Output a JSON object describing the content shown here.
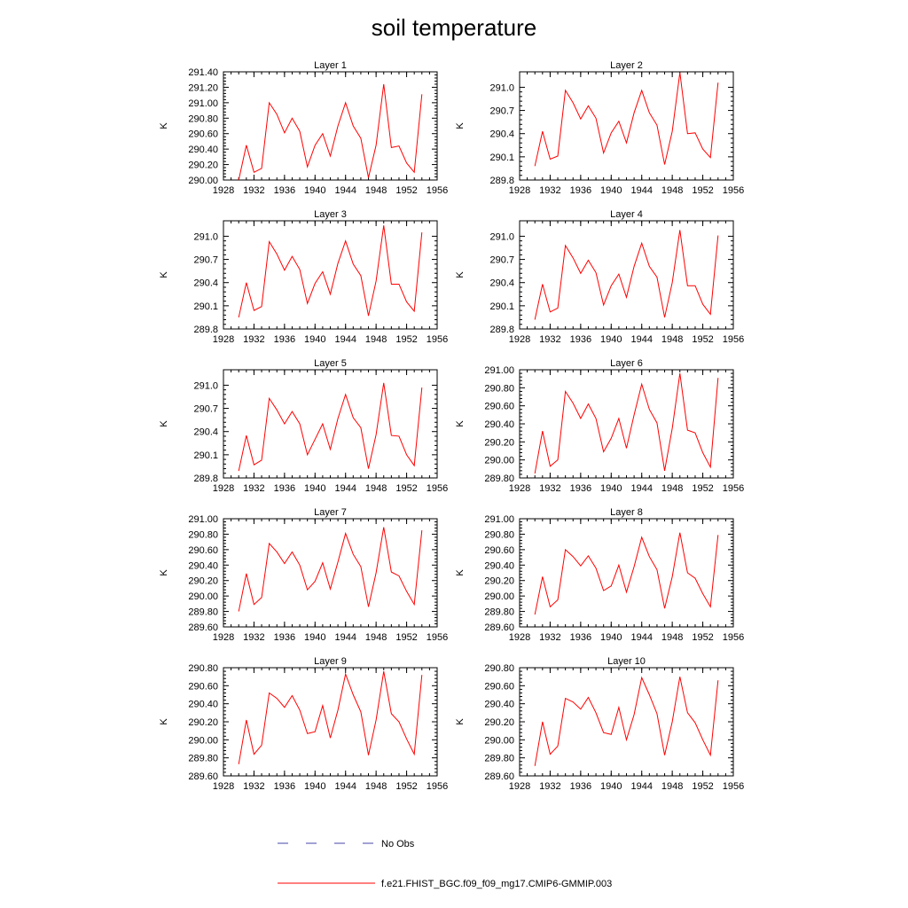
{
  "figure": {
    "title": "soil temperature"
  },
  "legend": {
    "entries": [
      {
        "label": "No Obs",
        "color": "#4444aa",
        "style": "dashed"
      },
      {
        "label": "f.e21.FHIST_BGC.f09_f09_mg17.CMIP6-GMMIP.003",
        "color": "#ff0000",
        "style": "solid"
      }
    ]
  },
  "chart_data": [
    {
      "type": "line",
      "title": "Layer 1",
      "ylabel": "K",
      "xlim": [
        1928,
        1956
      ],
      "ylim": [
        290.0,
        291.4
      ],
      "xticks": [
        1928,
        1932,
        1936,
        1940,
        1944,
        1948,
        1952,
        1956
      ],
      "yticks": [
        "290.00",
        "290.20",
        "290.40",
        "290.60",
        "290.80",
        "291.00",
        "291.20",
        "291.40"
      ],
      "series": [
        {
          "color": "#ff0000",
          "x": [
            1930,
            1931,
            1932,
            1933,
            1934,
            1935,
            1936,
            1937,
            1938,
            1939,
            1940,
            1941,
            1942,
            1943,
            1944,
            1945,
            1946,
            1947,
            1948,
            1949,
            1950,
            1951,
            1952,
            1953,
            1954
          ],
          "values": [
            290.0,
            290.45,
            290.1,
            290.15,
            291.0,
            290.85,
            290.61,
            290.8,
            290.63,
            290.17,
            290.45,
            290.6,
            290.31,
            290.7,
            291.0,
            290.7,
            290.54,
            290.03,
            290.45,
            291.24,
            290.42,
            290.44,
            290.22,
            290.1,
            291.11
          ]
        }
      ]
    },
    {
      "type": "line",
      "title": "Layer 2",
      "ylabel": "K",
      "xlim": [
        1928,
        1956
      ],
      "ylim": [
        289.8,
        291.2
      ],
      "xticks": [
        1928,
        1932,
        1936,
        1940,
        1944,
        1948,
        1952,
        1956
      ],
      "yticks": [
        "289.8",
        "290.1",
        "290.4",
        "290.7",
        "291.0"
      ],
      "series": [
        {
          "color": "#ff0000",
          "x": [
            1930,
            1931,
            1932,
            1933,
            1934,
            1935,
            1936,
            1937,
            1938,
            1939,
            1940,
            1941,
            1942,
            1943,
            1944,
            1945,
            1946,
            1947,
            1948,
            1949,
            1950,
            1951,
            1952,
            1953,
            1954
          ],
          "values": [
            289.98,
            290.43,
            290.07,
            290.11,
            290.96,
            290.8,
            290.59,
            290.76,
            290.6,
            290.15,
            290.41,
            290.56,
            290.28,
            290.67,
            290.96,
            290.67,
            290.51,
            290.0,
            290.43,
            291.19,
            290.4,
            290.41,
            290.2,
            290.09,
            291.06
          ]
        }
      ]
    },
    {
      "type": "line",
      "title": "Layer 3",
      "ylabel": "K",
      "xlim": [
        1928,
        1956
      ],
      "ylim": [
        289.8,
        291.2
      ],
      "xticks": [
        1928,
        1932,
        1936,
        1940,
        1944,
        1948,
        1952,
        1956
      ],
      "yticks": [
        "289.8",
        "290.1",
        "290.4",
        "290.7",
        "291.0"
      ],
      "series": [
        {
          "color": "#ff0000",
          "x": [
            1930,
            1931,
            1932,
            1933,
            1934,
            1935,
            1936,
            1937,
            1938,
            1939,
            1940,
            1941,
            1942,
            1943,
            1944,
            1945,
            1946,
            1947,
            1948,
            1949,
            1950,
            1951,
            1952,
            1953,
            1954
          ],
          "values": [
            289.95,
            290.4,
            290.04,
            290.09,
            290.93,
            290.77,
            290.56,
            290.74,
            290.57,
            290.13,
            290.39,
            290.54,
            290.25,
            290.65,
            290.94,
            290.64,
            290.49,
            289.97,
            290.42,
            291.14,
            290.38,
            290.38,
            290.15,
            290.03,
            291.05
          ]
        }
      ]
    },
    {
      "type": "line",
      "title": "Layer 4",
      "ylabel": "K",
      "xlim": [
        1928,
        1956
      ],
      "ylim": [
        289.8,
        291.2
      ],
      "xticks": [
        1928,
        1932,
        1936,
        1940,
        1944,
        1948,
        1952,
        1956
      ],
      "yticks": [
        "289.8",
        "290.1",
        "290.4",
        "290.7",
        "291.0"
      ],
      "series": [
        {
          "color": "#ff0000",
          "x": [
            1930,
            1931,
            1932,
            1933,
            1934,
            1935,
            1936,
            1937,
            1938,
            1939,
            1940,
            1941,
            1942,
            1943,
            1944,
            1945,
            1946,
            1947,
            1948,
            1949,
            1950,
            1951,
            1952,
            1953,
            1954
          ],
          "values": [
            289.92,
            290.38,
            290.02,
            290.07,
            290.88,
            290.72,
            290.52,
            290.69,
            290.53,
            290.11,
            290.36,
            290.51,
            290.21,
            290.61,
            290.91,
            290.61,
            290.47,
            289.95,
            290.4,
            291.08,
            290.36,
            290.36,
            290.12,
            289.99,
            291.01
          ]
        }
      ]
    },
    {
      "type": "line",
      "title": "Layer 5",
      "ylabel": "K",
      "xlim": [
        1928,
        1956
      ],
      "ylim": [
        289.8,
        291.2
      ],
      "xticks": [
        1928,
        1932,
        1936,
        1940,
        1944,
        1948,
        1952,
        1956
      ],
      "yticks": [
        "289.8",
        "290.1",
        "290.4",
        "290.7",
        "291.0"
      ],
      "series": [
        {
          "color": "#ff0000",
          "x": [
            1930,
            1931,
            1932,
            1933,
            1934,
            1935,
            1936,
            1937,
            1938,
            1939,
            1940,
            1941,
            1942,
            1943,
            1944,
            1945,
            1946,
            1947,
            1948,
            1949,
            1950,
            1951,
            1952,
            1953,
            1954
          ],
          "values": [
            289.89,
            290.35,
            289.97,
            290.03,
            290.83,
            290.68,
            290.5,
            290.66,
            290.5,
            290.1,
            290.3,
            290.5,
            290.17,
            290.57,
            290.88,
            290.58,
            290.45,
            289.92,
            290.36,
            291.03,
            290.35,
            290.34,
            290.1,
            289.96,
            290.97
          ]
        }
      ]
    },
    {
      "type": "line",
      "title": "Layer 6",
      "ylabel": "K",
      "xlim": [
        1928,
        1956
      ],
      "ylim": [
        289.8,
        291.0
      ],
      "xticks": [
        1928,
        1932,
        1936,
        1940,
        1944,
        1948,
        1952,
        1956
      ],
      "yticks": [
        "289.80",
        "290.00",
        "290.20",
        "290.40",
        "290.60",
        "290.80",
        "291.00"
      ],
      "series": [
        {
          "color": "#ff0000",
          "x": [
            1930,
            1931,
            1932,
            1933,
            1934,
            1935,
            1936,
            1937,
            1938,
            1939,
            1940,
            1941,
            1942,
            1943,
            1944,
            1945,
            1946,
            1947,
            1948,
            1949,
            1950,
            1951,
            1952,
            1953,
            1954
          ],
          "values": [
            289.85,
            290.32,
            289.93,
            290.0,
            290.76,
            290.63,
            290.46,
            290.62,
            290.46,
            290.09,
            290.24,
            290.46,
            290.13,
            290.5,
            290.84,
            290.56,
            290.41,
            289.88,
            290.35,
            290.96,
            290.33,
            290.3,
            290.08,
            289.92,
            290.91
          ]
        }
      ]
    },
    {
      "type": "line",
      "title": "Layer 7",
      "ylabel": "K",
      "xlim": [
        1928,
        1956
      ],
      "ylim": [
        289.6,
        291.0
      ],
      "xticks": [
        1928,
        1932,
        1936,
        1940,
        1944,
        1948,
        1952,
        1956
      ],
      "yticks": [
        "289.60",
        "289.80",
        "290.00",
        "290.20",
        "290.40",
        "290.60",
        "290.80",
        "291.00"
      ],
      "series": [
        {
          "color": "#ff0000",
          "x": [
            1930,
            1931,
            1932,
            1933,
            1934,
            1935,
            1936,
            1937,
            1938,
            1939,
            1940,
            1941,
            1942,
            1943,
            1944,
            1945,
            1946,
            1947,
            1948,
            1949,
            1950,
            1951,
            1952,
            1953,
            1954
          ],
          "values": [
            289.8,
            290.29,
            289.89,
            289.98,
            290.68,
            290.57,
            290.42,
            290.57,
            290.4,
            290.08,
            290.19,
            290.43,
            290.09,
            290.44,
            290.81,
            290.54,
            290.38,
            289.86,
            290.3,
            290.89,
            290.31,
            290.26,
            290.06,
            289.89,
            290.85
          ]
        }
      ]
    },
    {
      "type": "line",
      "title": "Layer 8",
      "ylabel": "K",
      "xlim": [
        1928,
        1956
      ],
      "ylim": [
        289.6,
        291.0
      ],
      "xticks": [
        1928,
        1932,
        1936,
        1940,
        1944,
        1948,
        1952,
        1956
      ],
      "yticks": [
        "289.60",
        "289.80",
        "290.00",
        "290.20",
        "290.40",
        "290.60",
        "290.80",
        "291.00"
      ],
      "series": [
        {
          "color": "#ff0000",
          "x": [
            1930,
            1931,
            1932,
            1933,
            1934,
            1935,
            1936,
            1937,
            1938,
            1939,
            1940,
            1941,
            1942,
            1943,
            1944,
            1945,
            1946,
            1947,
            1948,
            1949,
            1950,
            1951,
            1952,
            1953,
            1954
          ],
          "values": [
            289.76,
            290.25,
            289.86,
            289.95,
            290.6,
            290.51,
            290.39,
            290.52,
            290.36,
            290.07,
            290.13,
            290.4,
            290.05,
            290.38,
            290.76,
            290.51,
            290.34,
            289.84,
            290.25,
            290.82,
            290.3,
            290.23,
            290.03,
            289.86,
            290.79
          ]
        }
      ]
    },
    {
      "type": "line",
      "title": "Layer 9",
      "ylabel": "K",
      "xlim": [
        1928,
        1956
      ],
      "ylim": [
        289.6,
        290.8
      ],
      "xticks": [
        1928,
        1932,
        1936,
        1940,
        1944,
        1948,
        1952,
        1956
      ],
      "yticks": [
        "289.60",
        "289.80",
        "290.00",
        "290.20",
        "290.40",
        "290.60",
        "290.80"
      ],
      "series": [
        {
          "color": "#ff0000",
          "x": [
            1930,
            1931,
            1932,
            1933,
            1934,
            1935,
            1936,
            1937,
            1938,
            1939,
            1940,
            1941,
            1942,
            1943,
            1944,
            1945,
            1946,
            1947,
            1948,
            1949,
            1950,
            1951,
            1952,
            1953,
            1954
          ],
          "values": [
            289.73,
            290.22,
            289.84,
            289.94,
            290.52,
            290.46,
            290.36,
            290.49,
            290.33,
            290.07,
            290.09,
            290.38,
            290.02,
            290.33,
            290.73,
            290.5,
            290.31,
            289.83,
            290.22,
            290.76,
            290.29,
            290.2,
            290.01,
            289.84,
            290.72
          ]
        }
      ]
    },
    {
      "type": "line",
      "title": "Layer 10",
      "ylabel": "K",
      "xlim": [
        1928,
        1956
      ],
      "ylim": [
        289.6,
        290.8
      ],
      "xticks": [
        1928,
        1932,
        1936,
        1940,
        1944,
        1948,
        1952,
        1956
      ],
      "yticks": [
        "289.60",
        "289.80",
        "290.00",
        "290.20",
        "290.40",
        "290.60",
        "290.80"
      ],
      "series": [
        {
          "color": "#ff0000",
          "x": [
            1930,
            1931,
            1932,
            1933,
            1934,
            1935,
            1936,
            1937,
            1938,
            1939,
            1940,
            1941,
            1942,
            1943,
            1944,
            1945,
            1946,
            1947,
            1948,
            1949,
            1950,
            1951,
            1952,
            1953,
            1954
          ],
          "values": [
            289.71,
            290.2,
            289.84,
            289.93,
            290.46,
            290.42,
            290.34,
            290.47,
            290.3,
            290.08,
            290.06,
            290.36,
            290.0,
            290.28,
            290.69,
            290.5,
            290.29,
            289.83,
            290.2,
            290.7,
            290.3,
            290.19,
            290.0,
            289.83,
            290.66
          ]
        }
      ]
    }
  ]
}
